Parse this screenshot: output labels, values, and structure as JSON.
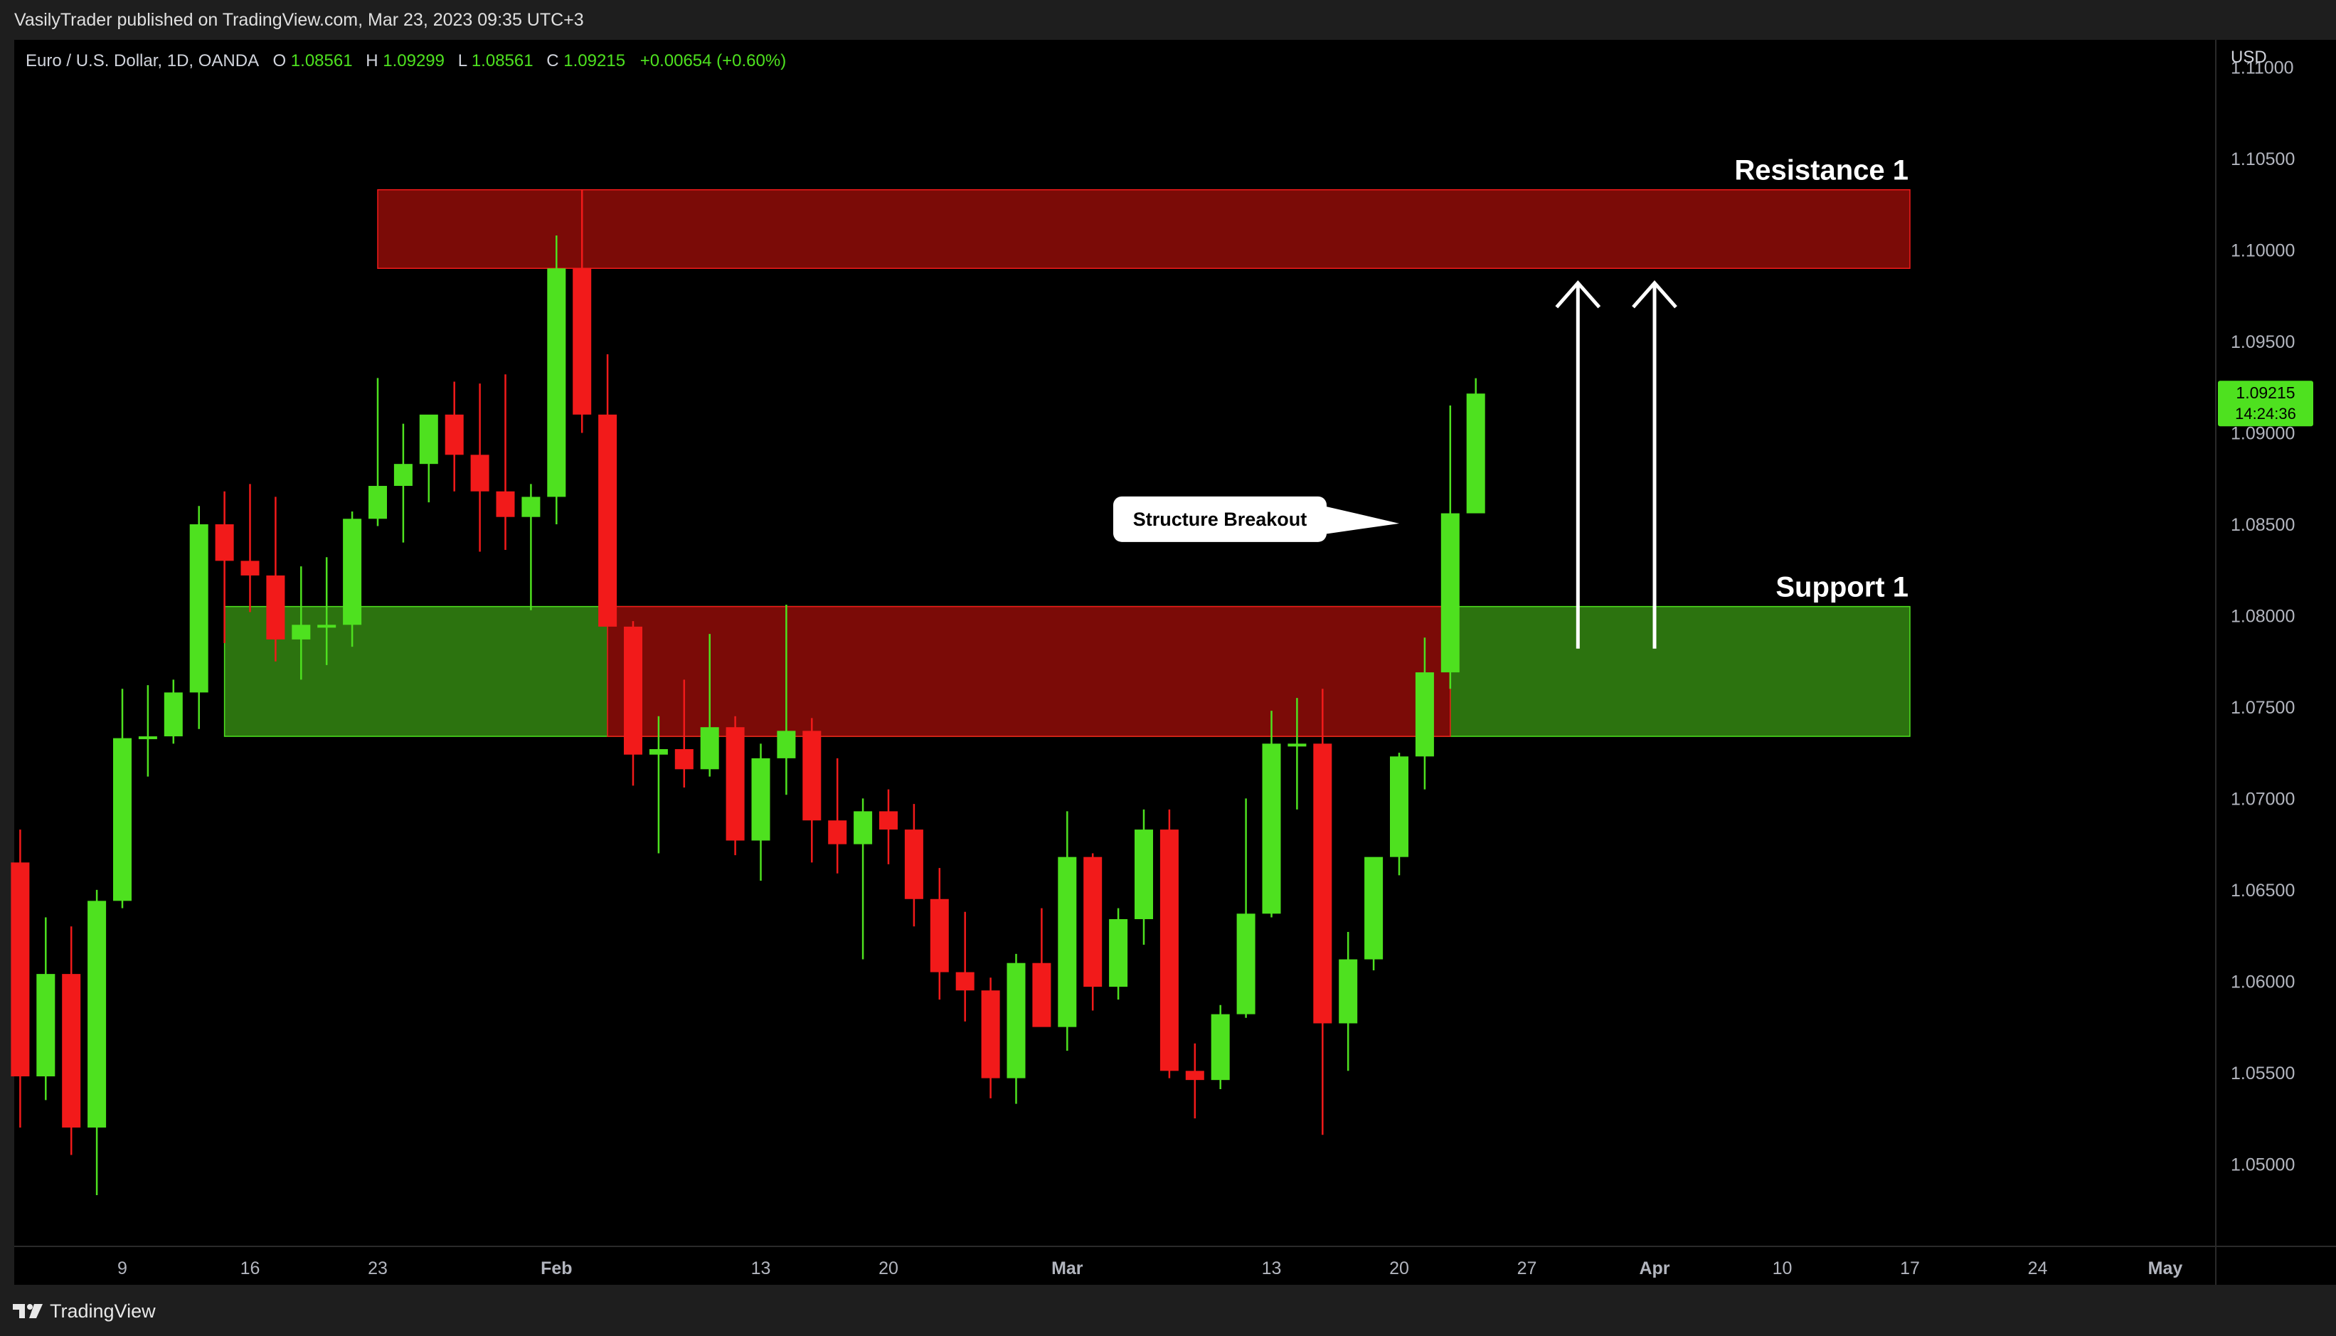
{
  "header": {
    "published_text": "VasilyTrader published on TradingView.com, Mar 23, 2023 09:35 UTC+3"
  },
  "legend": {
    "symbol": "Euro / U.S. Dollar, 1D, OANDA",
    "o_label": "O",
    "o": "1.08561",
    "h_label": "H",
    "h": "1.09299",
    "l_label": "L",
    "l": "1.08561",
    "c_label": "C",
    "c": "1.09215",
    "change": "+0.00654 (+0.60%)"
  },
  "price_axis": {
    "currency": "USD",
    "current_price": "1.09215",
    "countdown": "14:24:36"
  },
  "footer": {
    "brand": "TradingView"
  },
  "colors": {
    "up": "#4ee11f",
    "down": "#f21a1a",
    "resistance_fill": "#7b0b07",
    "support_fill": "#2c730f",
    "background": "#000000",
    "panel": "#1e1e1e"
  },
  "chart_data": {
    "type": "candlestick",
    "symbol": "EURUSD",
    "timeframe": "1D",
    "ylim": [
      1.0455,
      1.1115
    ],
    "y_ticks": [
      "1.05000",
      "1.05500",
      "1.06000",
      "1.06500",
      "1.07000",
      "1.07500",
      "1.08000",
      "1.08500",
      "1.09000",
      "1.09500",
      "1.10000",
      "1.10500",
      "1.11000"
    ],
    "x_ticks": [
      {
        "label": "9",
        "date": "2023-01-09"
      },
      {
        "label": "16",
        "date": "2023-01-16"
      },
      {
        "label": "23",
        "date": "2023-01-23"
      },
      {
        "label": "Feb",
        "date": "2023-02-01"
      },
      {
        "label": "13",
        "date": "2023-02-13"
      },
      {
        "label": "20",
        "date": "2023-02-20"
      },
      {
        "label": "Mar",
        "date": "2023-03-01"
      },
      {
        "label": "13",
        "date": "2023-03-13"
      },
      {
        "label": "20",
        "date": "2023-03-20"
      },
      {
        "label": "27",
        "date": "2023-03-27"
      },
      {
        "label": "Apr",
        "date": "2023-04-03"
      },
      {
        "label": "10",
        "date": "2023-04-10"
      },
      {
        "label": "17",
        "date": "2023-04-17"
      },
      {
        "label": "24",
        "date": "2023-04-24"
      },
      {
        "label": "May",
        "date": "2023-05-01"
      }
    ],
    "candles": [
      {
        "date": "2023-01-03",
        "o": 1.0665,
        "h": 1.0683,
        "l": 1.052,
        "c": 1.0548
      },
      {
        "date": "2023-01-04",
        "o": 1.0548,
        "h": 1.0635,
        "l": 1.0535,
        "c": 1.0604
      },
      {
        "date": "2023-01-05",
        "o": 1.0604,
        "h": 1.063,
        "l": 1.0505,
        "c": 1.052
      },
      {
        "date": "2023-01-06",
        "o": 1.052,
        "h": 1.065,
        "l": 1.0483,
        "c": 1.0644
      },
      {
        "date": "2023-01-09",
        "o": 1.0644,
        "h": 1.076,
        "l": 1.064,
        "c": 1.0733
      },
      {
        "date": "2023-01-10",
        "o": 1.0733,
        "h": 1.0762,
        "l": 1.0712,
        "c": 1.0734
      },
      {
        "date": "2023-01-11",
        "o": 1.0734,
        "h": 1.0765,
        "l": 1.073,
        "c": 1.0758
      },
      {
        "date": "2023-01-12",
        "o": 1.0758,
        "h": 1.086,
        "l": 1.0738,
        "c": 1.085
      },
      {
        "date": "2023-01-13",
        "o": 1.085,
        "h": 1.0868,
        "l": 1.0785,
        "c": 1.083
      },
      {
        "date": "2023-01-16",
        "o": 1.083,
        "h": 1.0872,
        "l": 1.0802,
        "c": 1.0822
      },
      {
        "date": "2023-01-17",
        "o": 1.0822,
        "h": 1.0865,
        "l": 1.0775,
        "c": 1.0787
      },
      {
        "date": "2023-01-18",
        "o": 1.0787,
        "h": 1.0827,
        "l": 1.0765,
        "c": 1.0795
      },
      {
        "date": "2023-01-19",
        "o": 1.0795,
        "h": 1.0832,
        "l": 1.0773,
        "c": 1.0795
      },
      {
        "date": "2023-01-20",
        "o": 1.0795,
        "h": 1.0857,
        "l": 1.0783,
        "c": 1.0853
      },
      {
        "date": "2023-01-23",
        "o": 1.0853,
        "h": 1.093,
        "l": 1.0849,
        "c": 1.0871
      },
      {
        "date": "2023-01-24",
        "o": 1.0871,
        "h": 1.0905,
        "l": 1.084,
        "c": 1.0883
      },
      {
        "date": "2023-01-25",
        "o": 1.0883,
        "h": 1.0904,
        "l": 1.0862,
        "c": 1.091
      },
      {
        "date": "2023-01-26",
        "o": 1.091,
        "h": 1.0928,
        "l": 1.0868,
        "c": 1.0888
      },
      {
        "date": "2023-01-27",
        "o": 1.0888,
        "h": 1.0927,
        "l": 1.0835,
        "c": 1.0868
      },
      {
        "date": "2023-01-30",
        "o": 1.0868,
        "h": 1.0932,
        "l": 1.0836,
        "c": 1.0854
      },
      {
        "date": "2023-01-31",
        "o": 1.0854,
        "h": 1.0872,
        "l": 1.0803,
        "c": 1.0865
      },
      {
        "date": "2023-02-01",
        "o": 1.0865,
        "h": 1.1008,
        "l": 1.085,
        "c": 1.099
      },
      {
        "date": "2023-02-02",
        "o": 1.099,
        "h": 1.1033,
        "l": 1.09,
        "c": 1.091
      },
      {
        "date": "2023-02-03",
        "o": 1.091,
        "h": 1.0943,
        "l": 1.0796,
        "c": 1.0794
      },
      {
        "date": "2023-02-06",
        "o": 1.0794,
        "h": 1.0797,
        "l": 1.0707,
        "c": 1.0724
      },
      {
        "date": "2023-02-07",
        "o": 1.0724,
        "h": 1.0745,
        "l": 1.067,
        "c": 1.0727
      },
      {
        "date": "2023-02-08",
        "o": 1.0727,
        "h": 1.0765,
        "l": 1.0706,
        "c": 1.0716
      },
      {
        "date": "2023-02-09",
        "o": 1.0716,
        "h": 1.079,
        "l": 1.0712,
        "c": 1.0739
      },
      {
        "date": "2023-02-10",
        "o": 1.0739,
        "h": 1.0745,
        "l": 1.0669,
        "c": 1.0677
      },
      {
        "date": "2023-02-13",
        "o": 1.0677,
        "h": 1.073,
        "l": 1.0655,
        "c": 1.0722
      },
      {
        "date": "2023-02-14",
        "o": 1.0722,
        "h": 1.0806,
        "l": 1.0702,
        "c": 1.0737
      },
      {
        "date": "2023-02-15",
        "o": 1.0737,
        "h": 1.0744,
        "l": 1.0665,
        "c": 1.0688
      },
      {
        "date": "2023-02-16",
        "o": 1.0688,
        "h": 1.0722,
        "l": 1.0659,
        "c": 1.0675
      },
      {
        "date": "2023-02-17",
        "o": 1.0675,
        "h": 1.07,
        "l": 1.0612,
        "c": 1.0693
      },
      {
        "date": "2023-02-20",
        "o": 1.0693,
        "h": 1.0705,
        "l": 1.0664,
        "c": 1.0683
      },
      {
        "date": "2023-02-21",
        "o": 1.0683,
        "h": 1.0697,
        "l": 1.063,
        "c": 1.0645
      },
      {
        "date": "2023-02-22",
        "o": 1.0645,
        "h": 1.0662,
        "l": 1.059,
        "c": 1.0605
      },
      {
        "date": "2023-02-23",
        "o": 1.0605,
        "h": 1.0638,
        "l": 1.0578,
        "c": 1.0595
      },
      {
        "date": "2023-02-24",
        "o": 1.0595,
        "h": 1.0602,
        "l": 1.0536,
        "c": 1.0547
      },
      {
        "date": "2023-02-27",
        "o": 1.0547,
        "h": 1.0615,
        "l": 1.0533,
        "c": 1.061
      },
      {
        "date": "2023-02-28",
        "o": 1.061,
        "h": 1.064,
        "l": 1.0576,
        "c": 1.0575
      },
      {
        "date": "2023-03-01",
        "o": 1.0575,
        "h": 1.0693,
        "l": 1.0562,
        "c": 1.0668
      },
      {
        "date": "2023-03-02",
        "o": 1.0668,
        "h": 1.067,
        "l": 1.0584,
        "c": 1.0597
      },
      {
        "date": "2023-03-03",
        "o": 1.0597,
        "h": 1.064,
        "l": 1.059,
        "c": 1.0634
      },
      {
        "date": "2023-03-06",
        "o": 1.0634,
        "h": 1.0694,
        "l": 1.062,
        "c": 1.0683
      },
      {
        "date": "2023-03-07",
        "o": 1.0683,
        "h": 1.0694,
        "l": 1.0547,
        "c": 1.0551
      },
      {
        "date": "2023-03-08",
        "o": 1.0551,
        "h": 1.0566,
        "l": 1.0525,
        "c": 1.0546
      },
      {
        "date": "2023-03-09",
        "o": 1.0546,
        "h": 1.0587,
        "l": 1.0541,
        "c": 1.0582
      },
      {
        "date": "2023-03-10",
        "o": 1.0582,
        "h": 1.07,
        "l": 1.058,
        "c": 1.0637
      },
      {
        "date": "2023-03-13",
        "o": 1.0637,
        "h": 1.0748,
        "l": 1.0635,
        "c": 1.073
      },
      {
        "date": "2023-03-14",
        "o": 1.073,
        "h": 1.0755,
        "l": 1.0694,
        "c": 1.073
      },
      {
        "date": "2023-03-15",
        "o": 1.073,
        "h": 1.076,
        "l": 1.0516,
        "c": 1.0577
      },
      {
        "date": "2023-03-16",
        "o": 1.0577,
        "h": 1.0627,
        "l": 1.0551,
        "c": 1.0612
      },
      {
        "date": "2023-03-17",
        "o": 1.0612,
        "h": 1.0666,
        "l": 1.0606,
        "c": 1.0668
      },
      {
        "date": "2023-03-20",
        "o": 1.0668,
        "h": 1.0725,
        "l": 1.0658,
        "c": 1.0723
      },
      {
        "date": "2023-03-21",
        "o": 1.0723,
        "h": 1.0788,
        "l": 1.0705,
        "c": 1.0769
      },
      {
        "date": "2023-03-22",
        "o": 1.0769,
        "h": 1.0915,
        "l": 1.076,
        "c": 1.0856
      },
      {
        "date": "2023-03-23",
        "o": 1.0856,
        "h": 1.09299,
        "l": 1.0856,
        "c": 1.09215
      }
    ],
    "zones": [
      {
        "name": "Resistance 1",
        "kind": "resistance",
        "from": "2023-01-23",
        "to": "2023-04-17",
        "y_low": 1.099,
        "y_high": 1.1033
      },
      {
        "name": "Support 1",
        "kind": "support",
        "from": "2023-01-13",
        "to": "2023-04-17",
        "y_low": 1.0734,
        "y_high": 1.0805
      },
      {
        "name": "",
        "kind": "flip",
        "from": "2023-02-03",
        "to": "2023-03-22",
        "y_low": 1.0734,
        "y_high": 1.0805
      }
    ],
    "annotations": [
      {
        "text": "Structure Breakout",
        "type": "callout",
        "x": "2023-03-06",
        "y": 1.0852
      }
    ],
    "arrows": [
      {
        "x": "2023-03-29",
        "y_from": 1.0782,
        "y_to": 1.0982
      },
      {
        "x": "2023-04-03",
        "y_from": 1.0782,
        "y_to": 1.0982
      }
    ]
  }
}
